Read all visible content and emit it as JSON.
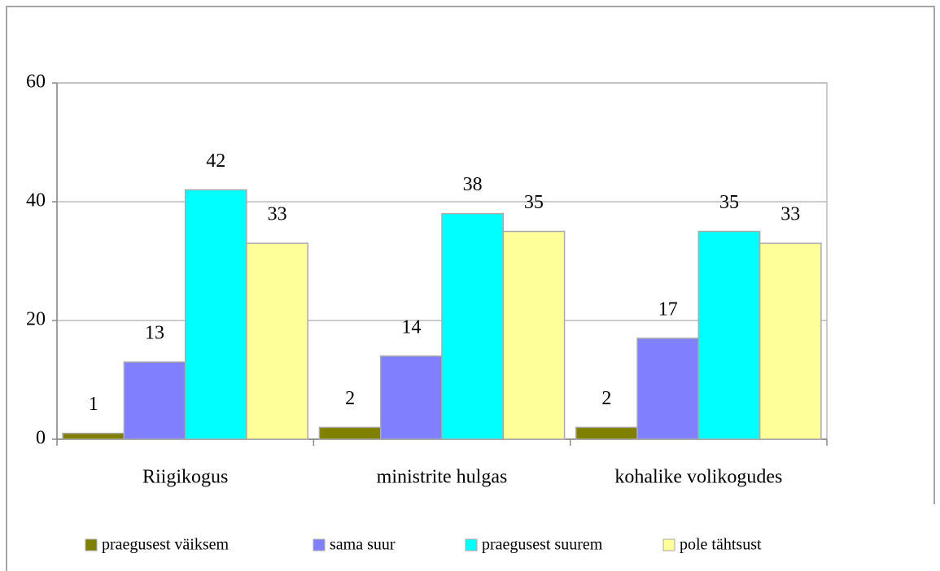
{
  "chart_data": {
    "type": "bar",
    "categories": [
      "Riigikogus",
      "ministrite hulgas",
      "kohalike volikogudes"
    ],
    "series": [
      {
        "name": "praegusest väiksem",
        "color": "#808000",
        "values": [
          1,
          2,
          2
        ]
      },
      {
        "name": "sama suur",
        "color": "#8080ff",
        "values": [
          13,
          14,
          17
        ]
      },
      {
        "name": "praegusest suurem",
        "color": "#00ffff",
        "values": [
          42,
          38,
          35
        ]
      },
      {
        "name": "pole tähtsust",
        "color": "#ffff99",
        "values": [
          33,
          35,
          33
        ]
      }
    ],
    "ylim": [
      0,
      60
    ],
    "yticks": [
      0,
      20,
      40,
      60
    ],
    "grid": true,
    "legend": "bottom"
  }
}
